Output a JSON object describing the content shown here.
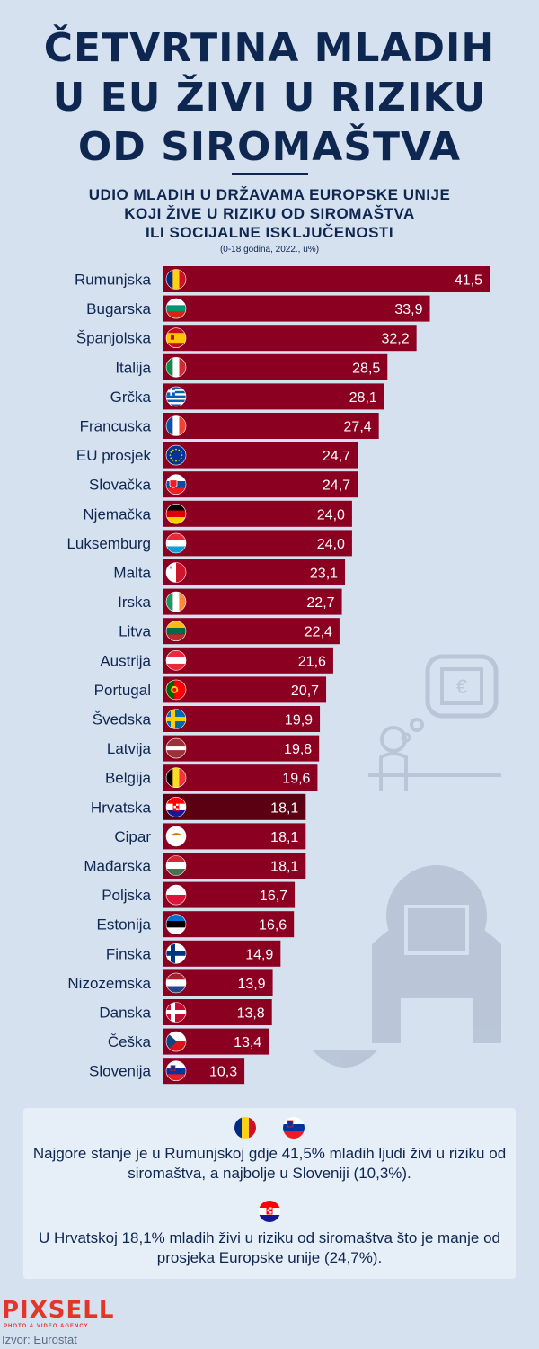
{
  "title_lines": [
    "ČETVRTINA MLADIH",
    "U EU ŽIVI U RIZIKU",
    "OD SIROMAŠTVA"
  ],
  "subtitle_lines": [
    "UDIO MLADIH U DRŽAVAMA EUROPSKE UNIJE",
    "KOJI ŽIVE U RIZIKU OD SIROMAŠTVA",
    "ILI SOCIJALNE ISKLJUČENOSTI"
  ],
  "subtitle_note": "(0-18 godina, 2022., u%)",
  "colors": {
    "background": "#d6e1ef",
    "bar": "#8b0020",
    "bar_highlight": "#5b0012",
    "text": "#0e2751",
    "panel": "#e6eef8",
    "logo": "#e2362a"
  },
  "chart_data": {
    "type": "bar",
    "orientation": "horizontal",
    "categories": [
      "Rumunjska",
      "Bugarska",
      "Španjolska",
      "Italija",
      "Grčka",
      "Francuska",
      "EU prosjek",
      "Slovačka",
      "Njemačka",
      "Luksemburg",
      "Malta",
      "Irska",
      "Litva",
      "Austrija",
      "Portugal",
      "Švedska",
      "Latvija",
      "Belgija",
      "Hrvatska",
      "Cipar",
      "Mađarska",
      "Poljska",
      "Estonija",
      "Finska",
      "Nizozemska",
      "Danska",
      "Češka",
      "Slovenija"
    ],
    "values": [
      41.5,
      33.9,
      32.2,
      28.5,
      28.1,
      27.4,
      24.7,
      24.7,
      24.0,
      24.0,
      23.1,
      22.7,
      22.4,
      21.6,
      20.7,
      19.9,
      19.8,
      19.6,
      18.1,
      18.1,
      18.1,
      16.7,
      16.6,
      14.9,
      13.9,
      13.8,
      13.4,
      10.3
    ],
    "value_labels": [
      "41,5",
      "33,9",
      "32,2",
      "28,5",
      "28,1",
      "27,4",
      "24,7",
      "24,7",
      "24,0",
      "24,0",
      "23,1",
      "22,7",
      "22,4",
      "21,6",
      "20,7",
      "19,9",
      "19,8",
      "19,6",
      "18,1",
      "18,1",
      "18,1",
      "16,7",
      "16,6",
      "14,9",
      "13,9",
      "13,8",
      "13,4",
      "10,3"
    ],
    "flags": [
      "romania-flag-icon",
      "bulgaria-flag-icon",
      "spain-flag-icon",
      "italy-flag-icon",
      "greece-flag-icon",
      "france-flag-icon",
      "eu-flag-icon",
      "slovakia-flag-icon",
      "germany-flag-icon",
      "luxembourg-flag-icon",
      "malta-flag-icon",
      "ireland-flag-icon",
      "lithuania-flag-icon",
      "austria-flag-icon",
      "portugal-flag-icon",
      "sweden-flag-icon",
      "latvia-flag-icon",
      "belgium-flag-icon",
      "croatia-flag-icon",
      "cyprus-flag-icon",
      "hungary-flag-icon",
      "poland-flag-icon",
      "estonia-flag-icon",
      "finland-flag-icon",
      "netherlands-flag-icon",
      "denmark-flag-icon",
      "czechia-flag-icon",
      "slovenia-flag-icon"
    ],
    "highlight": "Hrvatska",
    "xlim": [
      0,
      41.5
    ],
    "grid": false,
    "legend": "none"
  },
  "info": {
    "text1": "Najgore stanje je u Rumunjskoj gdje 41,5% mladih ljudi živi u riziku od siromaštva, a najbolje u Sloveniji (10,3%).",
    "text2": "U Hrvatskoj 18,1% mladih živi u riziku od siromaštva što je manje od prosjeka Europske unije (24,7%).",
    "icons": [
      "romania-flag-icon",
      "slovenia-flag-icon",
      "croatia-flag-icon"
    ]
  },
  "logo": {
    "name": "PIXSELL",
    "tagline": "PHOTO & VIDEO AGENCY"
  },
  "source": "Izvor: Eurostat"
}
